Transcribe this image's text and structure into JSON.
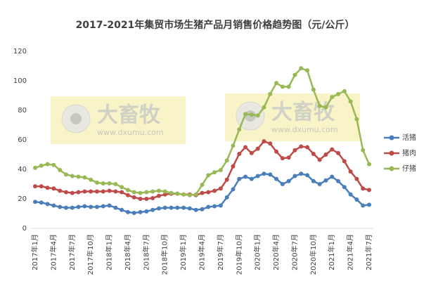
{
  "chart_data": {
    "type": "line",
    "title": "2017-2021年集贸市场生猪产品月销售价格趋势图（元/公斤）",
    "watermark": {
      "brand": "大畜牧",
      "site": "www.dxumu.com"
    },
    "categories": [
      "2017年1月",
      null,
      null,
      "2017年4月",
      null,
      null,
      "2017年7月",
      null,
      null,
      "2017年10月",
      null,
      null,
      "2018年1月",
      null,
      null,
      "2018年4月",
      null,
      null,
      "2018年7月",
      null,
      null,
      "2018年10月",
      null,
      null,
      "2019年1月",
      null,
      null,
      "2019年4月",
      null,
      null,
      "2019年7月",
      null,
      null,
      "2019年10月",
      null,
      null,
      "2020年1月",
      null,
      null,
      "2020年4月",
      null,
      null,
      "2020年7月",
      null,
      null,
      "2020年10月",
      null,
      null,
      "2021年1月",
      null,
      null,
      "2021年4月",
      null,
      null,
      "2021年7月"
    ],
    "series": [
      {
        "name": "活猪",
        "color": "#4a7ebb",
        "values": [
          18,
          17.5,
          16.5,
          15.5,
          14.5,
          14,
          14,
          14.5,
          15,
          14.5,
          14.5,
          15,
          15.5,
          14,
          12.5,
          11,
          10.5,
          11,
          11.5,
          12.5,
          13.5,
          14,
          14,
          14,
          14,
          13.5,
          12.5,
          13,
          14.5,
          15,
          15.5,
          21,
          26.5,
          33.5,
          35,
          33.5,
          35.5,
          37,
          36.5,
          33.5,
          30,
          32,
          35.5,
          37,
          36,
          32,
          30,
          32.5,
          35,
          32,
          28,
          23,
          19.5,
          15.5,
          16
        ]
      },
      {
        "name": "猪肉",
        "color": "#be4b48",
        "values": [
          28.5,
          28.5,
          27.5,
          27,
          25.5,
          24.5,
          24,
          24.5,
          25,
          25,
          25,
          25,
          25.5,
          25,
          24.5,
          22.5,
          21,
          20,
          20,
          20.5,
          22,
          23,
          23.5,
          23.5,
          23,
          23,
          22.5,
          24,
          24.5,
          25.5,
          27,
          33,
          42,
          50.5,
          55,
          51,
          54,
          59,
          57.5,
          52,
          47.5,
          48,
          53,
          55.5,
          55,
          50.5,
          46.5,
          50,
          53.5,
          51,
          45.5,
          38.5,
          33.5,
          27,
          26
        ]
      },
      {
        "name": "仔猪",
        "color": "#98b954",
        "values": [
          41,
          42.5,
          43.5,
          43,
          39.5,
          36.5,
          35.5,
          35,
          34.5,
          33,
          31,
          30.5,
          30.5,
          30,
          28,
          26,
          24.5,
          24,
          24.5,
          25,
          25.5,
          25,
          24,
          23.5,
          23,
          22.5,
          23,
          29.5,
          36,
          38,
          39.5,
          46,
          56,
          67,
          77.5,
          77,
          76.5,
          82,
          91,
          98.5,
          96,
          96,
          104,
          108.5,
          107,
          94,
          83,
          82,
          89,
          91,
          93,
          86,
          74,
          53,
          43.5
        ]
      }
    ],
    "ylim": [
      0,
      120
    ],
    "yticks": [
      0,
      20,
      40,
      60,
      80,
      100,
      120
    ],
    "grid": false,
    "legend": "right"
  }
}
